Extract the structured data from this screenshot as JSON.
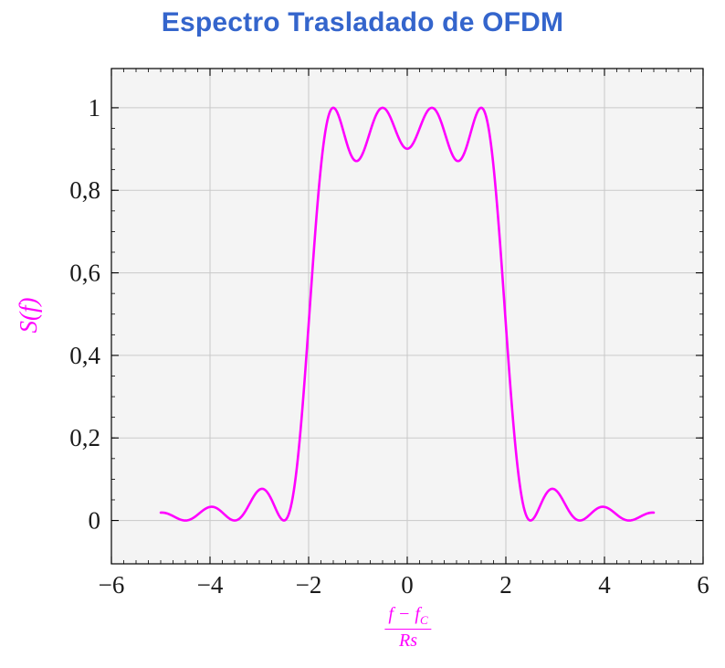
{
  "title": "Espectro Trasladado de OFDM",
  "colors": {
    "title": "#3465cc",
    "curve": "#ff00ff",
    "axis_label": "#ee00dd",
    "grid": "#c9c9c9",
    "plot_bg": "#f4f4f4",
    "frame": "#000000",
    "tick_text": "#1a1a1a"
  },
  "axes": {
    "y": {
      "label": "S(f)",
      "ticks": [
        {
          "value": 0.0,
          "label": "0"
        },
        {
          "value": 0.2,
          "label": "0,2"
        },
        {
          "value": 0.4,
          "label": "0,4"
        },
        {
          "value": 0.6,
          "label": "0,6"
        },
        {
          "value": 0.8,
          "label": "0,8"
        },
        {
          "value": 1.0,
          "label": "1"
        }
      ],
      "minor_step": 0.05
    },
    "x": {
      "label_numerator_main": "f − f",
      "label_numerator_sub": "C",
      "label_denominator": "Rs",
      "ticks": [
        {
          "value": -6,
          "label": "−6"
        },
        {
          "value": -4,
          "label": "−4"
        },
        {
          "value": -2,
          "label": "−2"
        },
        {
          "value": 0,
          "label": "0"
        },
        {
          "value": 2,
          "label": "2"
        },
        {
          "value": 4,
          "label": "4"
        },
        {
          "value": 6,
          "label": "6"
        }
      ],
      "minor_step": 0.25
    }
  },
  "chart_data": {
    "type": "line",
    "title": "Espectro Trasladado de OFDM",
    "xlabel": "(f − f_C)/Rs",
    "ylabel": "S(f)",
    "xlim": [
      -6,
      6
    ],
    "ylim": [
      -0.105,
      1.095
    ],
    "grid": true,
    "legend": "none",
    "x_range_data": [
      -5,
      5
    ],
    "model": {
      "name": "sum_of_sinc_squared",
      "description": "S(f) = sum over subcarriers k of sinc^2(f - k), OFDM power spectrum of 4 subcarriers",
      "subcarriers": [
        -1.5,
        -0.5,
        0.5,
        1.5
      ],
      "sample_step": 0.02
    },
    "series": [
      {
        "name": "S(f)",
        "color": "#ff00ff",
        "samples": {
          "x": [
            -5,
            -4.5,
            -4,
            -3.5,
            -3,
            -2.5,
            -2,
            -1.5,
            -1,
            -0.5,
            0,
            0.5,
            1,
            1.5,
            2,
            2.5,
            3,
            3.5,
            4,
            4.5,
            5
          ],
          "y": [
            0.019,
            0,
            0.0328,
            0,
            0.0745,
            0,
            0.4748,
            1.0,
            0.8718,
            1.0,
            0.9007,
            1.0,
            0.8718,
            1.0,
            0.4748,
            0,
            0.0745,
            0,
            0.0328,
            0,
            0.019
          ]
        }
      }
    ]
  }
}
